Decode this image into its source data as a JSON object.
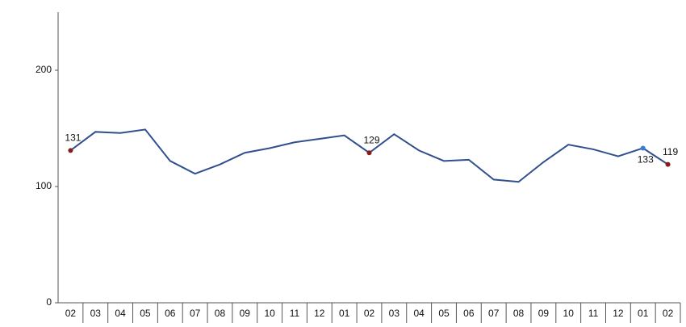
{
  "chart_data": {
    "type": "line",
    "categories": [
      "02",
      "03",
      "04",
      "05",
      "06",
      "07",
      "08",
      "09",
      "10",
      "11",
      "12",
      "01",
      "02",
      "03",
      "04",
      "05",
      "06",
      "07",
      "08",
      "09",
      "10",
      "11",
      "12",
      "01",
      "02"
    ],
    "series": [
      {
        "color": "#2f4f8f",
        "values": [
          131,
          147,
          146,
          149,
          122,
          111,
          119,
          129,
          133,
          138,
          141,
          144,
          129,
          145,
          131,
          122,
          123,
          106,
          104,
          121,
          136,
          132,
          126,
          133,
          119
        ],
        "point_colors": [
          "#8b1a1a",
          null,
          null,
          null,
          null,
          null,
          null,
          null,
          null,
          null,
          null,
          null,
          "#8b1a1a",
          null,
          null,
          null,
          null,
          null,
          null,
          null,
          null,
          null,
          null,
          "#3a7bd5",
          "#8b1a1a"
        ]
      }
    ],
    "ylim": [
      0,
      250
    ],
    "yticks": [
      0,
      100,
      200
    ]
  }
}
